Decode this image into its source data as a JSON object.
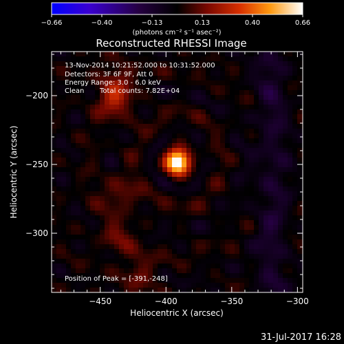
{
  "colorbar": {
    "ticks": [
      "-0.66",
      "-0.40",
      "-0.13",
      "0.13",
      "0.40",
      "0.66"
    ],
    "unit_label": "(photons cm⁻² s⁻¹ asec⁻²)"
  },
  "title": "Reconstructed RHESSI Image",
  "annotations": {
    "time_range": "13-Nov-2014 10:21:52.000 to 10:31:52.000",
    "detectors": "Detectors: 3F 6F 9F, Att 0",
    "energy": "Energy Range: 3.0 - 6.0 keV",
    "clean": "Clean",
    "counts": "Total counts: 7.82E+04",
    "peak": "Position of Peak = [-391,-248]"
  },
  "footer_date": "31-Jul-2017 16:28",
  "colors": {
    "background": "#000000",
    "colormap": [
      "#0000ff",
      "#5a00b0",
      "#000000",
      "#9a1000",
      "#ff6a00",
      "#ffd040",
      "#ffffff"
    ]
  },
  "chart_data": {
    "type": "heatmap",
    "title": "Reconstructed RHESSI Image",
    "xlabel": "Heliocentric X (arcsec)",
    "ylabel": "Heliocentric Y (arcsec)",
    "xlim": [
      -487,
      -296
    ],
    "ylim": [
      -343,
      -168
    ],
    "xticks": [
      -450,
      -400,
      -350,
      -300
    ],
    "yticks": [
      -200,
      -250,
      -300
    ],
    "xtick_labels": [
      "−450",
      "−400",
      "−350",
      "−300"
    ],
    "ytick_labels": [
      "−200",
      "−250",
      "−300"
    ],
    "colorbar_range": [
      -0.66,
      0.66
    ],
    "peak": {
      "x": -391,
      "y": -248
    },
    "sources": [
      {
        "x": -391,
        "y": -248,
        "intensity": 0.66
      },
      {
        "x": -438,
        "y": -204,
        "intensity": 0.24
      },
      {
        "x": -436,
        "y": -272,
        "intensity": 0.15
      },
      {
        "x": -436,
        "y": -303,
        "intensity": 0.12
      },
      {
        "x": -420,
        "y": -330,
        "intensity": 0.14
      },
      {
        "x": -440,
        "y": -185,
        "intensity": 0.12
      }
    ]
  }
}
